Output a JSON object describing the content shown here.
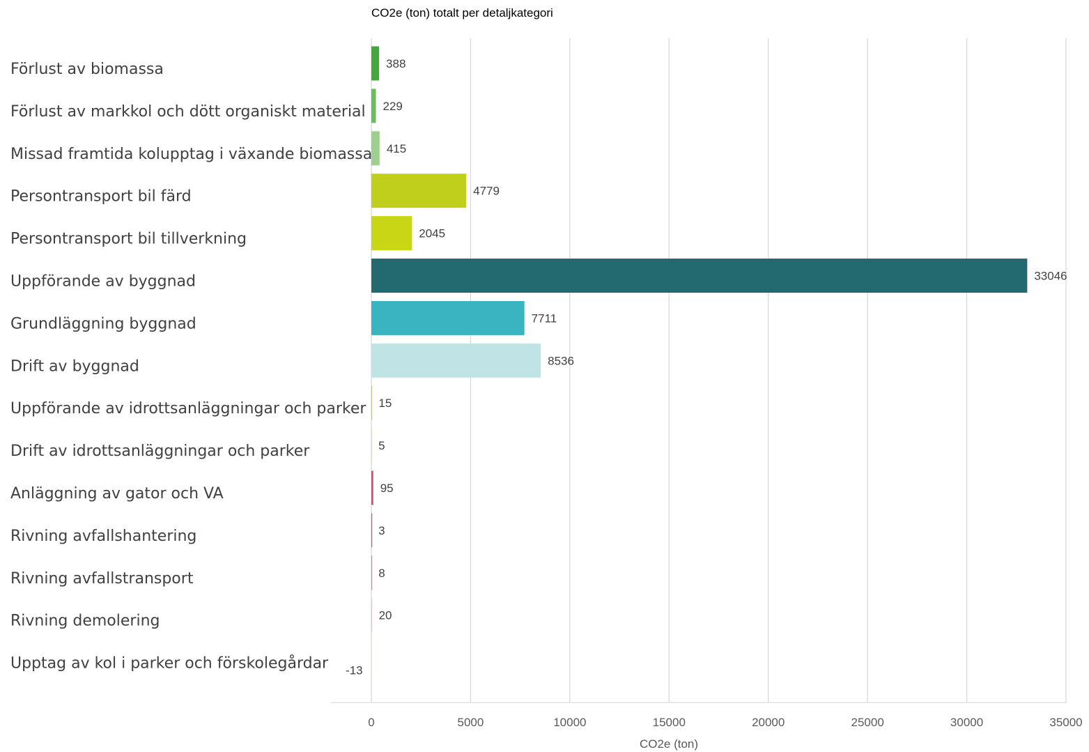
{
  "chart_data": {
    "type": "bar",
    "orientation": "horizontal",
    "title": "CO2e (ton) totalt per detaljkategori",
    "xlabel": "CO2e (ton)",
    "ylabel": "",
    "xlim": [
      -2000,
      35000
    ],
    "xticks": [
      0,
      5000,
      10000,
      15000,
      20000,
      25000,
      30000,
      35000
    ],
    "grid": true,
    "legend": "none",
    "categories": [
      "Förlust av biomassa",
      "Förlust av markkol och dött organiskt material",
      "Missad framtida kolupptag i växande biomassa",
      "Persontransport bil färd",
      "Persontransport bil tillverkning",
      "Uppförande av byggnad",
      "Grundläggning byggnad",
      "Drift av byggnad",
      "Uppförande av idrottsanläggningar och parker",
      "Drift av  idrottsanläggningar och parker",
      "Anläggning av gator och VA",
      "Rivning avfallshantering",
      "Rivning avfallstransport",
      "Rivning demolering",
      "Upptag av kol i parker och förskolegårdar"
    ],
    "values": [
      388,
      229,
      415,
      4779,
      2045,
      33046,
      7711,
      8536,
      15,
      5,
      95,
      3,
      8,
      20,
      -13
    ],
    "data_labels": [
      "388",
      "229",
      "415",
      "4779",
      "2045",
      "33046",
      "7711",
      "8536",
      "15",
      "5",
      "95",
      "3",
      "8",
      "20",
      "-13"
    ],
    "colors": [
      "#44a83c",
      "#6abd5a",
      "#9fcf8f",
      "#bfcf1c",
      "#c9d615",
      "#236a70",
      "#3bb4c1",
      "#c0e3e6",
      "#f2c91f",
      "#f6e27a",
      "#d94b6c",
      "#d64f8a",
      "#e07fb3",
      "#f2c2d8",
      "#cfe8c8"
    ]
  }
}
